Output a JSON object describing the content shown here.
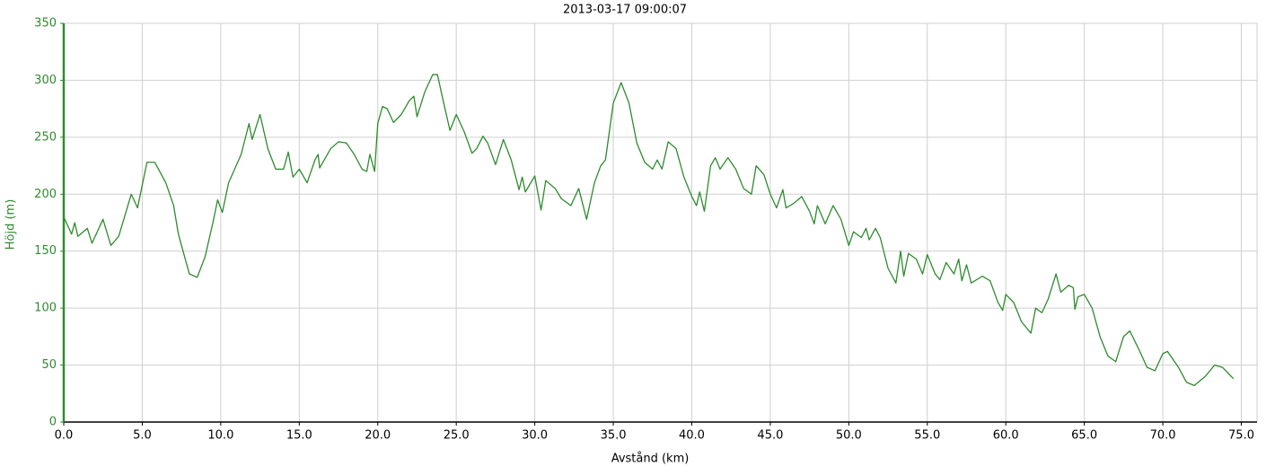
{
  "chart_data": {
    "type": "line",
    "title": "2013-03-17 09:00:07",
    "x_label": "Avstånd (km)",
    "y_label": "Höjd (m)",
    "xlim": [
      0,
      76
    ],
    "ylim": [
      0,
      350
    ],
    "xticks": [
      {
        "value": 0,
        "label": "0.0"
      },
      {
        "value": 5,
        "label": "5.0"
      },
      {
        "value": 10,
        "label": "10.0"
      },
      {
        "value": 15,
        "label": "15.0"
      },
      {
        "value": 20,
        "label": "20.0"
      },
      {
        "value": 25,
        "label": "25.0"
      },
      {
        "value": 30,
        "label": "30.0"
      },
      {
        "value": 35,
        "label": "35.0"
      },
      {
        "value": 40,
        "label": "40.0"
      },
      {
        "value": 45,
        "label": "45.0"
      },
      {
        "value": 50,
        "label": "50.0"
      },
      {
        "value": 55,
        "label": "55.0"
      },
      {
        "value": 60,
        "label": "60.0"
      },
      {
        "value": 65,
        "label": "65.0"
      },
      {
        "value": 70,
        "label": "70.0"
      },
      {
        "value": 75,
        "label": "75.0"
      }
    ],
    "yticks": [
      0,
      50,
      100,
      150,
      200,
      250,
      300,
      350
    ],
    "grid": true,
    "x": [
      0,
      0.5,
      0.7,
      0.9,
      1.5,
      1.8,
      2.5,
      3.0,
      3.5,
      4.3,
      4.7,
      5.3,
      5.8,
      6.5,
      7.0,
      7.3,
      8.0,
      8.5,
      9.0,
      9.5,
      9.8,
      10.1,
      10.5,
      11.3,
      11.8,
      12.0,
      12.5,
      13.0,
      13.5,
      14.0,
      14.3,
      14.6,
      15.0,
      15.5,
      16.0,
      16.2,
      16.3,
      17.0,
      17.5,
      18.0,
      18.5,
      19.0,
      19.3,
      19.5,
      19.8,
      20.0,
      20.3,
      20.6,
      21.0,
      21.5,
      22.0,
      22.3,
      22.5,
      23.0,
      23.5,
      23.8,
      24.2,
      24.6,
      25.0,
      25.5,
      26.0,
      26.3,
      26.7,
      27.0,
      27.5,
      28.0,
      28.5,
      29.0,
      29.2,
      29.4,
      30.0,
      30.4,
      30.7,
      31.3,
      31.7,
      32.3,
      32.8,
      33.3,
      33.8,
      34.2,
      34.5,
      35.0,
      35.5,
      36.0,
      36.5,
      37.0,
      37.5,
      37.8,
      38.1,
      38.5,
      39.0,
      39.5,
      40.0,
      40.3,
      40.5,
      40.8,
      41.2,
      41.5,
      41.8,
      42.3,
      42.8,
      43.3,
      43.8,
      44.1,
      44.6,
      45.0,
      45.4,
      45.8,
      46.0,
      46.5,
      47.0,
      47.5,
      47.8,
      48.0,
      48.5,
      49.0,
      49.5,
      50.0,
      50.3,
      50.8,
      51.1,
      51.3,
      51.7,
      52.0,
      52.5,
      53.0,
      53.3,
      53.5,
      53.8,
      54.3,
      54.7,
      55.0,
      55.5,
      55.8,
      56.2,
      56.7,
      57.0,
      57.2,
      57.5,
      57.8,
      58.5,
      59.0,
      59.5,
      59.8,
      60.0,
      60.5,
      61.0,
      61.6,
      61.9,
      62.3,
      62.7,
      63.2,
      63.5,
      64.0,
      64.3,
      64.4,
      64.6,
      65.0,
      65.5,
      66.0,
      66.5,
      67.0,
      67.5,
      67.9,
      68.5,
      69.0,
      69.5,
      70.0,
      70.3,
      71.0,
      71.5,
      72.0,
      72.7,
      73.3,
      73.8,
      74.5
    ],
    "series": [
      {
        "color": "#2e8b2e",
        "values": [
          180,
          165,
          175,
          163,
          170,
          157,
          178,
          155,
          163,
          200,
          188,
          228,
          228,
          210,
          190,
          165,
          130,
          127,
          145,
          175,
          195,
          184,
          210,
          235,
          262,
          248,
          270,
          240,
          222,
          222,
          237,
          215,
          222,
          210,
          230,
          235,
          223,
          240,
          246,
          245,
          235,
          222,
          220,
          235,
          220,
          262,
          277,
          275,
          263,
          270,
          282,
          286,
          268,
          290,
          305,
          305,
          280,
          256,
          270,
          255,
          236,
          240,
          251,
          245,
          226,
          248,
          230,
          204,
          215,
          202,
          216,
          186,
          212,
          205,
          196,
          190,
          205,
          178,
          210,
          225,
          230,
          280,
          298,
          280,
          245,
          228,
          222,
          230,
          222,
          246,
          240,
          215,
          198,
          190,
          202,
          185,
          225,
          232,
          222,
          232,
          222,
          205,
          200,
          225,
          217,
          200,
          188,
          204,
          188,
          192,
          198,
          185,
          174,
          190,
          174,
          190,
          178,
          155,
          167,
          162,
          170,
          160,
          170,
          162,
          135,
          122,
          150,
          128,
          148,
          143,
          130,
          147,
          130,
          125,
          140,
          130,
          143,
          124,
          138,
          122,
          128,
          124,
          105,
          98,
          112,
          105,
          88,
          78,
          100,
          96,
          108,
          130,
          114,
          120,
          118,
          99,
          110,
          112,
          100,
          75,
          58,
          53,
          75,
          80,
          63,
          48,
          45,
          60,
          62,
          48,
          35,
          32,
          40,
          50,
          48,
          38
        ]
      }
    ]
  }
}
